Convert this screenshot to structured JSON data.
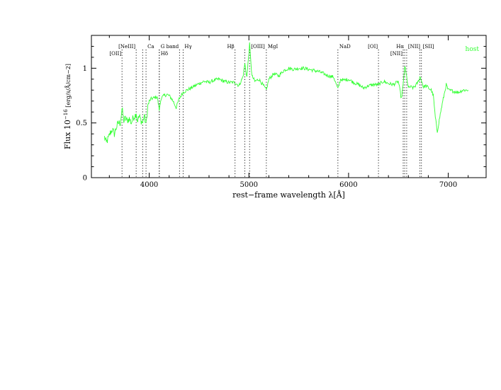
{
  "chart_data": {
    "type": "line",
    "title": "",
    "xlabel": "rest−frame wavelength λ[Å]",
    "ylabel": {
      "prefix": "Flux  10",
      "exponent": "−16",
      "unit": " [erg/s/Å/cm−2]"
    },
    "xlim": [
      3420,
      7380
    ],
    "ylim": [
      0,
      1.3
    ],
    "x_ticks": [
      4000,
      5000,
      6000,
      7000
    ],
    "x_tick_labels": [
      "4000",
      "5000",
      "6000",
      "7000"
    ],
    "y_ticks": [
      0,
      0.5,
      1
    ],
    "y_tick_labels": [
      "0",
      "0.5",
      "1"
    ],
    "legend": {
      "entries": [
        "host"
      ],
      "placement": "top-right"
    },
    "colors": {
      "series": "#33ff33",
      "axes": "#000000",
      "lines": "#000000"
    },
    "grid": false,
    "series": [
      {
        "name": "host",
        "x": [
          3550,
          3570,
          3590,
          3610,
          3630,
          3650,
          3670,
          3690,
          3710,
          3727,
          3745,
          3760,
          3780,
          3800,
          3820,
          3840,
          3860,
          3869,
          3880,
          3900,
          3920,
          3935,
          3950,
          3968,
          3985,
          4000,
          4020,
          4050,
          4080,
          4101,
          4120,
          4150,
          4180,
          4210,
          4240,
          4270,
          4300,
          4340,
          4380,
          4420,
          4460,
          4500,
          4550,
          4600,
          4650,
          4700,
          4750,
          4800,
          4861,
          4900,
          4940,
          4959,
          4980,
          5007,
          5030,
          5060,
          5100,
          5140,
          5175,
          5200,
          5250,
          5300,
          5350,
          5400,
          5450,
          5500,
          5550,
          5600,
          5650,
          5700,
          5750,
          5800,
          5850,
          5893,
          5920,
          5950,
          6000,
          6050,
          6100,
          6150,
          6200,
          6250,
          6300,
          6350,
          6400,
          6450,
          6500,
          6530,
          6548,
          6563,
          6583,
          6600,
          6620,
          6650,
          6680,
          6700,
          6716,
          6731,
          6750,
          6780,
          6800,
          6830,
          6850,
          6870,
          6890,
          6920,
          6950,
          6980,
          7000,
          7050,
          7100,
          7150,
          7200
        ],
        "values": [
          0.37,
          0.32,
          0.36,
          0.41,
          0.44,
          0.4,
          0.46,
          0.5,
          0.5,
          0.63,
          0.52,
          0.54,
          0.52,
          0.54,
          0.5,
          0.55,
          0.57,
          0.6,
          0.52,
          0.56,
          0.52,
          0.5,
          0.57,
          0.48,
          0.65,
          0.7,
          0.72,
          0.73,
          0.74,
          0.62,
          0.73,
          0.75,
          0.76,
          0.74,
          0.7,
          0.64,
          0.72,
          0.78,
          0.8,
          0.82,
          0.84,
          0.86,
          0.88,
          0.87,
          0.89,
          0.9,
          0.88,
          0.87,
          0.87,
          0.84,
          0.92,
          1.04,
          0.92,
          1.22,
          0.93,
          0.88,
          0.9,
          0.85,
          0.8,
          0.9,
          0.95,
          0.93,
          0.98,
          1.0,
          0.99,
          1.0,
          1.0,
          0.99,
          0.98,
          0.97,
          0.95,
          0.93,
          0.92,
          0.81,
          0.9,
          0.89,
          0.9,
          0.87,
          0.85,
          0.82,
          0.84,
          0.85,
          0.85,
          0.88,
          0.86,
          0.85,
          0.88,
          0.72,
          0.85,
          1.02,
          0.92,
          0.82,
          0.83,
          0.82,
          0.85,
          0.88,
          0.92,
          0.89,
          0.83,
          0.84,
          0.82,
          0.8,
          0.75,
          0.55,
          0.42,
          0.58,
          0.72,
          0.85,
          0.8,
          0.79,
          0.78,
          0.8,
          0.8
        ]
      }
    ],
    "spectral_lines": [
      {
        "label": "[OII]",
        "wavelength": 3727,
        "label_row": 2,
        "label_align": "end"
      },
      {
        "label": "[NeIII]",
        "wavelength": 3869,
        "label_row": 1,
        "label_align": "end"
      },
      {
        "label": "",
        "wavelength": 3934,
        "label_row": 1,
        "label_align": "start"
      },
      {
        "label": "Ca",
        "wavelength": 3968,
        "label_row": 1,
        "label_align": "start"
      },
      {
        "label": "G band",
        "wavelength": 4101,
        "label_row": 1,
        "label_align": "start"
      },
      {
        "label": "Hδ",
        "wavelength": 4101,
        "label_row": 2,
        "label_align": "start"
      },
      {
        "label": "",
        "wavelength": 4304,
        "label_row": 1,
        "label_align": "start"
      },
      {
        "label": "Hγ",
        "wavelength": 4340,
        "label_row": 1,
        "label_align": "start"
      },
      {
        "label": "Hβ",
        "wavelength": 4861,
        "label_row": 1,
        "label_align": "end"
      },
      {
        "label": "",
        "wavelength": 4959,
        "label_row": 1,
        "label_align": "start"
      },
      {
        "label": "[OIII]",
        "wavelength": 5007,
        "label_row": 1,
        "label_align": "start"
      },
      {
        "label": "MgI",
        "wavelength": 5175,
        "label_row": 1,
        "label_align": "start"
      },
      {
        "label": "NaD",
        "wavelength": 5893,
        "label_row": 1,
        "label_align": "start"
      },
      {
        "label": "[OI]",
        "wavelength": 6300,
        "label_row": 1,
        "label_align": "end"
      },
      {
        "label": "[NII]",
        "wavelength": 6548,
        "label_row": 2,
        "label_align": "end"
      },
      {
        "label": "Hα",
        "wavelength": 6563,
        "label_row": 1,
        "label_align": "end"
      },
      {
        "label": "[NII]",
        "wavelength": 6583,
        "label_row": 1,
        "label_align": "start"
      },
      {
        "label": "",
        "wavelength": 6716,
        "label_row": 1,
        "label_align": "start"
      },
      {
        "label": "[SII]",
        "wavelength": 6731,
        "label_row": 1,
        "label_align": "start"
      }
    ]
  }
}
